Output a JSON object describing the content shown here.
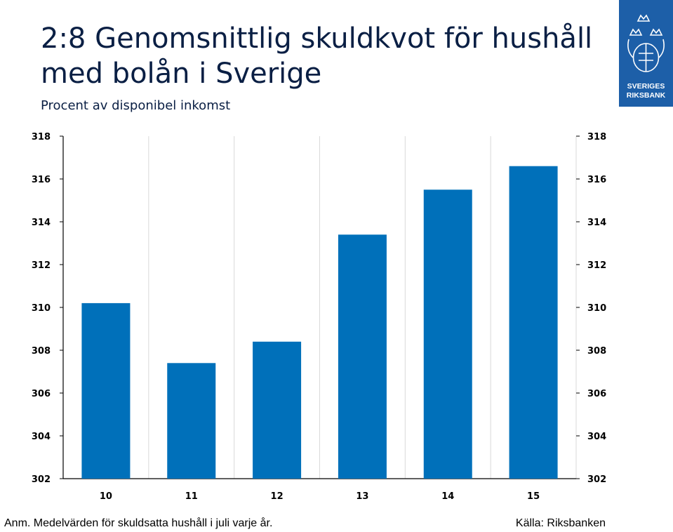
{
  "title": "2:8 Genomsnittlig skuldkvot för hushåll med bolån i Sverige",
  "subtitle": "Procent av disponibel inkomst",
  "logo": {
    "text_line1": "SVERIGES",
    "text_line2": "RIKSBANK",
    "icon": "riksbank-crest-icon"
  },
  "footnote": "Anm. Medelvärden för skuldsatta hushåll i juli varje år.",
  "source": "Källa: Riksbanken",
  "colors": {
    "bar": "#0070ba",
    "grid": "#d9d9d9",
    "title": "#0a1f44",
    "logo_bg": "#1d5fa8"
  },
  "chart_data": {
    "type": "bar",
    "title": "2:8 Genomsnittlig skuldkvot för hushåll med bolån i Sverige",
    "subtitle": "Procent av disponibel inkomst",
    "xlabel": "",
    "ylabel": "",
    "categories": [
      "10",
      "11",
      "12",
      "13",
      "14",
      "15"
    ],
    "values": [
      310.2,
      307.4,
      308.4,
      313.4,
      315.5,
      316.6
    ],
    "ylim": [
      302,
      318
    ],
    "yticks": [
      "302",
      "304",
      "306",
      "308",
      "310",
      "312",
      "314",
      "316",
      "318"
    ],
    "y_axis_sides": "both",
    "grid": "vertical"
  }
}
